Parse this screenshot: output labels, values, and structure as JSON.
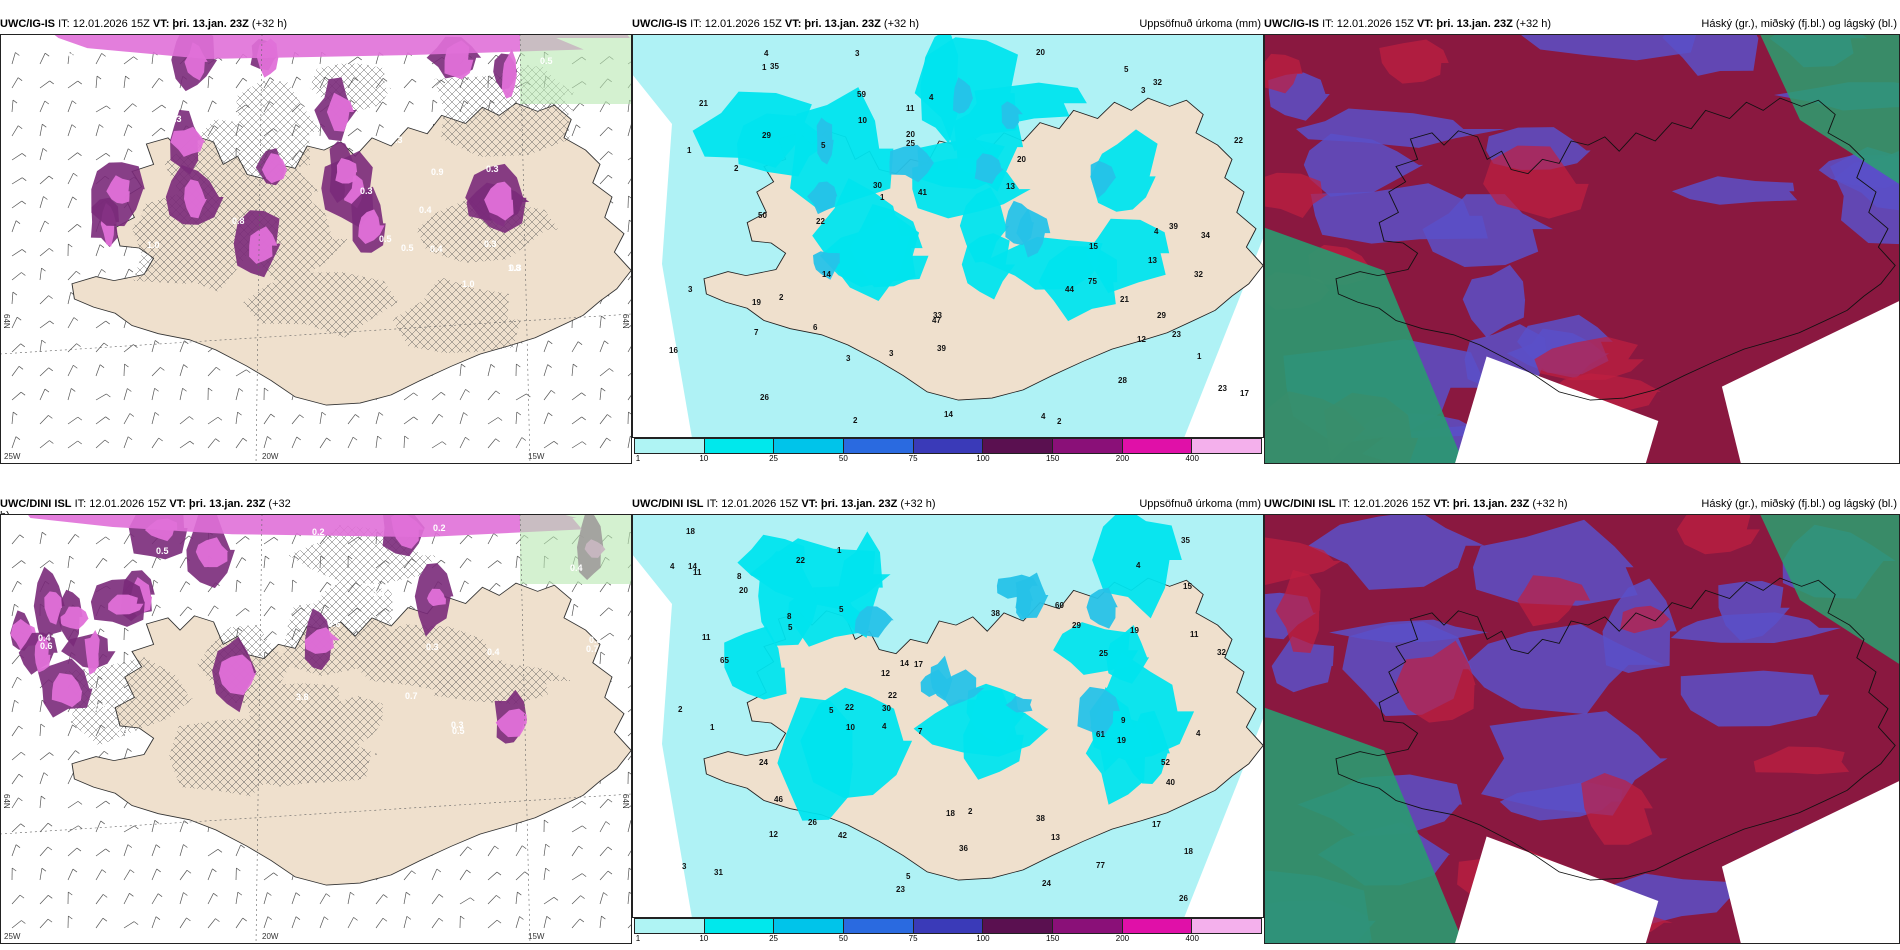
{
  "panels": [
    {
      "id": "p1",
      "model": "UWC/IG-IS",
      "it": "IT: 12.01.2026 15Z",
      "vt_label": "VT:",
      "vt": "þri. 13.jan. 23Z",
      "lead": "(+32 h)",
      "right": "",
      "type": "cloud",
      "numbers": [
        "0.3",
        "0.3",
        "0.4",
        "0.5",
        "0.4",
        "0.2",
        "0.3",
        "0.5",
        "0.3",
        "0.3",
        "1.0",
        "0.8",
        "0.9",
        "0.5",
        "1.0",
        "0.4",
        "0.3",
        "1.8",
        "0.3",
        "0.3"
      ],
      "lon_labels": [
        "20W",
        "15W",
        "25W"
      ],
      "lat_labels": [
        "64N",
        "64N"
      ]
    },
    {
      "id": "p2",
      "model": "UWC/IG-IS",
      "it": "IT: 12.01.2026 15Z",
      "vt_label": "VT:",
      "vt": "þri. 13.jan. 23Z",
      "lead": "(+32 h)",
      "right": "Uppsöfnuð úrkoma (mm)",
      "type": "precip",
      "numbers": [
        "29",
        "26",
        "44",
        "15",
        "21",
        "20",
        "50",
        "75",
        "30",
        "39",
        "59",
        "35",
        "17",
        "34",
        "41",
        "21",
        "32",
        "33",
        "16",
        "20",
        "13",
        "29",
        "22",
        "19",
        "23",
        "39",
        "14",
        "47",
        "25",
        "32",
        "22",
        "23",
        "28",
        "20",
        "12",
        "11",
        "13",
        "10",
        "7",
        "14",
        "4",
        "3",
        "6",
        "2",
        "5",
        "2",
        "1",
        "3",
        "2",
        "4",
        "5",
        "3",
        "4",
        "1",
        "2",
        "1",
        "3",
        "3",
        "1",
        "4"
      ]
    },
    {
      "id": "p3",
      "model": "UWC/IG-IS",
      "it": "IT: 12.01.2026 15Z",
      "vt_label": "VT:",
      "vt": "þri. 13.jan. 23Z",
      "lead": "(+32 h)",
      "right": "Háský (gr.), miðský (fj.bl.) og lágský (bl.)",
      "type": "layers"
    },
    {
      "id": "p4",
      "model": "UWC/DINI ISL",
      "it": "IT: 12.01.2026 15Z",
      "vt_label": "VT:",
      "vt": "þri. 13.jan. 23Z",
      "lead": "(+32",
      "lead2": "h)",
      "right": "",
      "type": "cloud",
      "numbers": [
        "0.3",
        "0.2",
        "0.3",
        "0.3",
        "0.3",
        "0.4",
        "0.8",
        "0.7",
        "0.6",
        "0.3",
        "0.6",
        "0.4",
        "0.5",
        "0.5",
        "0.8",
        "0.3",
        "0.4",
        "0.7",
        "0.2",
        "3.8"
      ],
      "lon_labels": [
        "20W",
        "15W",
        "25W"
      ],
      "lat_labels": [
        "64N",
        "64N"
      ]
    },
    {
      "id": "p5",
      "model": "UWC/DINI ISL",
      "it": "IT: 12.01.2026 15Z",
      "vt_label": "VT:",
      "vt": "þri. 13.jan. 23Z",
      "lead": "(+32 h)",
      "right": "Uppsöfnuð úrkoma (mm)",
      "type": "precip",
      "numbers": [
        "14",
        "17",
        "19",
        "22",
        "12",
        "40",
        "17",
        "18",
        "22",
        "65",
        "61",
        "60",
        "38",
        "26",
        "11",
        "23",
        "77",
        "35",
        "29",
        "38",
        "18",
        "26",
        "14",
        "12",
        "5",
        "36",
        "10",
        "22",
        "42",
        "8",
        "11",
        "25",
        "5",
        "31",
        "46",
        "24",
        "13",
        "32",
        "52",
        "20",
        "30",
        "24",
        "19",
        "9",
        "11",
        "2",
        "2",
        "5",
        "8",
        "4",
        "3",
        "7",
        "5",
        "1",
        "1",
        "4",
        "15",
        "18",
        "4",
        "4"
      ]
    },
    {
      "id": "p6",
      "model": "UWC/DINI ISL",
      "it": "IT: 12.01.2026 15Z",
      "vt_label": "VT:",
      "vt": "þri. 13.jan. 23Z",
      "lead": "(+32 h)",
      "right": "Háský (gr.), miðský (fj.bl.) og lágský (bl.)",
      "type": "layers"
    }
  ],
  "colorbar": {
    "labels": [
      "1",
      "10",
      "25",
      "50",
      "75",
      "100",
      "150",
      "200",
      "400"
    ],
    "colors": [
      "#aff4f4",
      "#00e8ec",
      "#00c4ea",
      "#2a6ae0",
      "#3a3ab8",
      "#5a1050",
      "#8a1078",
      "#e010a8",
      "#f4b0ec"
    ]
  },
  "colors": {
    "land": "#efe0cd",
    "sea": "#ffffff",
    "precip_light": "#aff2f5",
    "precip_med": "#00e4ee",
    "precip_high": "#26c2e8",
    "cloud_pink": "#e070d8",
    "cloud_purple": "#7a2a7a",
    "high_cloud": "#8a1840",
    "mid_cloud": "#5a50c8",
    "low_cloud": "#2a9a70"
  }
}
